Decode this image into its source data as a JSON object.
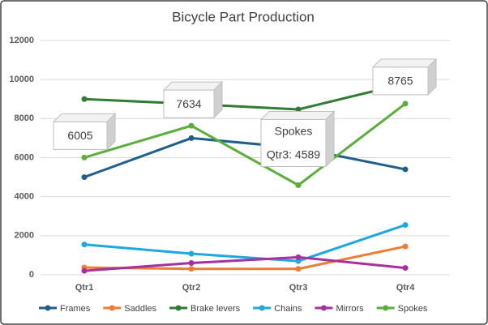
{
  "chart_data": {
    "type": "line",
    "title": "Bicycle Part Production",
    "categories": [
      "Qtr1",
      "Qtr2",
      "Qtr3",
      "Qtr4"
    ],
    "ylim": [
      0,
      12000
    ],
    "yticks": [
      0,
      2000,
      4000,
      6000,
      8000,
      10000,
      12000
    ],
    "grid": true,
    "legend": "bottom",
    "series": [
      {
        "name": "Frames",
        "color": "#1f5f8b",
        "values": [
          5000,
          7000,
          6500,
          5400
        ]
      },
      {
        "name": "Saddles",
        "color": "#ed7d31",
        "values": [
          370,
          300,
          300,
          1450
        ]
      },
      {
        "name": "Brake levers",
        "color": "#2e7d32",
        "values": [
          9000,
          8750,
          8470,
          9800
        ]
      },
      {
        "name": "Chains",
        "color": "#1ea7e1",
        "values": [
          1550,
          1080,
          700,
          2550
        ]
      },
      {
        "name": "Mirrors",
        "color": "#a5309e",
        "values": [
          200,
          600,
          900,
          350
        ]
      },
      {
        "name": "Spokes",
        "color": "#5aae3a",
        "values": [
          6005,
          7634,
          4589,
          8765
        ],
        "value_labels": [
          "6005",
          "7634",
          "Qtr3: 4589",
          "8765"
        ]
      }
    ]
  }
}
